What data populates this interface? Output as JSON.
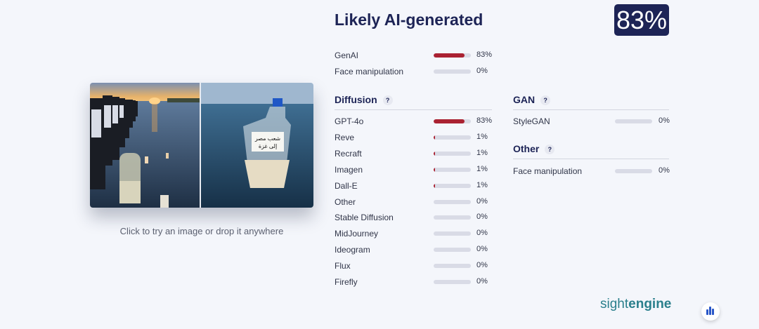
{
  "header": {
    "title": "Likely AI-generated",
    "score": "83%"
  },
  "upload": {
    "caption": "Click to try an image or drop it anywhere"
  },
  "top_rows": [
    {
      "label": "GenAI",
      "value": "83%",
      "level": 83
    },
    {
      "label": "Face manipulation",
      "value": "0%",
      "level": 0
    }
  ],
  "diffusion": {
    "title": "Diffusion",
    "help": "?",
    "rows": [
      {
        "label": "GPT-4o",
        "value": "83%",
        "level": 83
      },
      {
        "label": "Reve",
        "value": "1%",
        "level": 1
      },
      {
        "label": "Recraft",
        "value": "1%",
        "level": 1
      },
      {
        "label": "Imagen",
        "value": "1%",
        "level": 1
      },
      {
        "label": "Dall-E",
        "value": "1%",
        "level": 1
      },
      {
        "label": "Other",
        "value": "0%",
        "level": 0
      },
      {
        "label": "Stable Diffusion",
        "value": "0%",
        "level": 0
      },
      {
        "label": "MidJourney",
        "value": "0%",
        "level": 0
      },
      {
        "label": "Ideogram",
        "value": "0%",
        "level": 0
      },
      {
        "label": "Flux",
        "value": "0%",
        "level": 0
      },
      {
        "label": "Firefly",
        "value": "0%",
        "level": 0
      }
    ]
  },
  "gan": {
    "title": "GAN",
    "help": "?",
    "rows": [
      {
        "label": "StyleGAN",
        "value": "0%",
        "level": 0
      }
    ]
  },
  "other": {
    "title": "Other",
    "help": "?",
    "rows": [
      {
        "label": "Face manipulation",
        "value": "0%",
        "level": 0
      }
    ]
  },
  "brand": {
    "part1": "sight",
    "part2": "engine"
  },
  "colors": {
    "accent": "#1d2456",
    "bar_fill": "#aa2232",
    "bar_track": "#d9dbe6",
    "brand": "#2a7f8c"
  },
  "icons": {
    "fab": "audio-bars-icon",
    "help": "help-icon"
  }
}
